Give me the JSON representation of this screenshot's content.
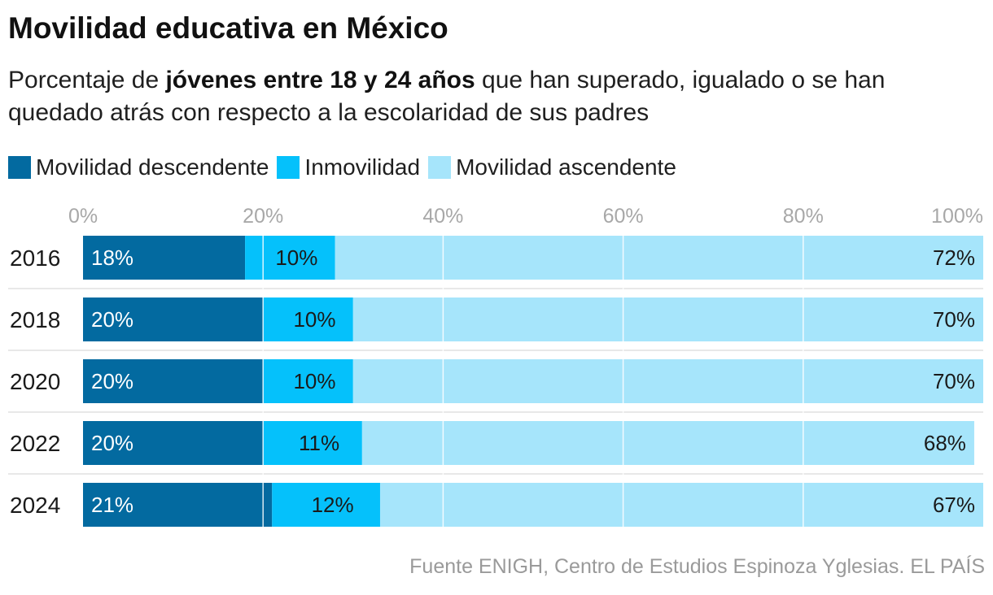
{
  "title": "Movilidad educativa en México",
  "subtitle": {
    "part1": "Porcentaje de ",
    "bold": "jóvenes entre 18 y 24 años",
    "part2": " que han superado, igualado o se han quedado atrás con respecto a la escolaridad de sus padres"
  },
  "legend": [
    {
      "label": "Movilidad descendente",
      "color": "#036aa0"
    },
    {
      "label": "Inmovilidad",
      "color": "#05c1fb"
    },
    {
      "label": "Movilidad ascendente",
      "color": "#a6e5fb"
    }
  ],
  "source": "Fuente ENIGH, Centro de Estudios Espinoza Yglesias. EL PAÍS",
  "chart_data": {
    "type": "bar",
    "orientation": "horizontal",
    "stacked": true,
    "categories": [
      "2016",
      "2018",
      "2020",
      "2022",
      "2024"
    ],
    "series": [
      {
        "name": "Movilidad descendente",
        "color": "#036aa0",
        "values": [
          18,
          20,
          20,
          20,
          21
        ],
        "labels": [
          "18%",
          "20%",
          "20%",
          "20%",
          "21%"
        ]
      },
      {
        "name": "Inmovilidad",
        "color": "#05c1fb",
        "values": [
          10,
          10,
          10,
          11,
          12
        ],
        "labels": [
          "10%",
          "10%",
          "10%",
          "11%",
          "12%"
        ]
      },
      {
        "name": "Movilidad ascendente",
        "color": "#a6e5fb",
        "values": [
          72,
          70,
          70,
          68,
          67
        ],
        "labels": [
          "72%",
          "70%",
          "70%",
          "68%",
          "67%"
        ]
      }
    ],
    "xlim": [
      0,
      100
    ],
    "xticks": [
      0,
      20,
      40,
      60,
      80,
      100
    ],
    "xtick_labels": [
      "0%",
      "20%",
      "40%",
      "60%",
      "80%",
      "100%"
    ],
    "grid": true,
    "legend_position": "top-left"
  }
}
